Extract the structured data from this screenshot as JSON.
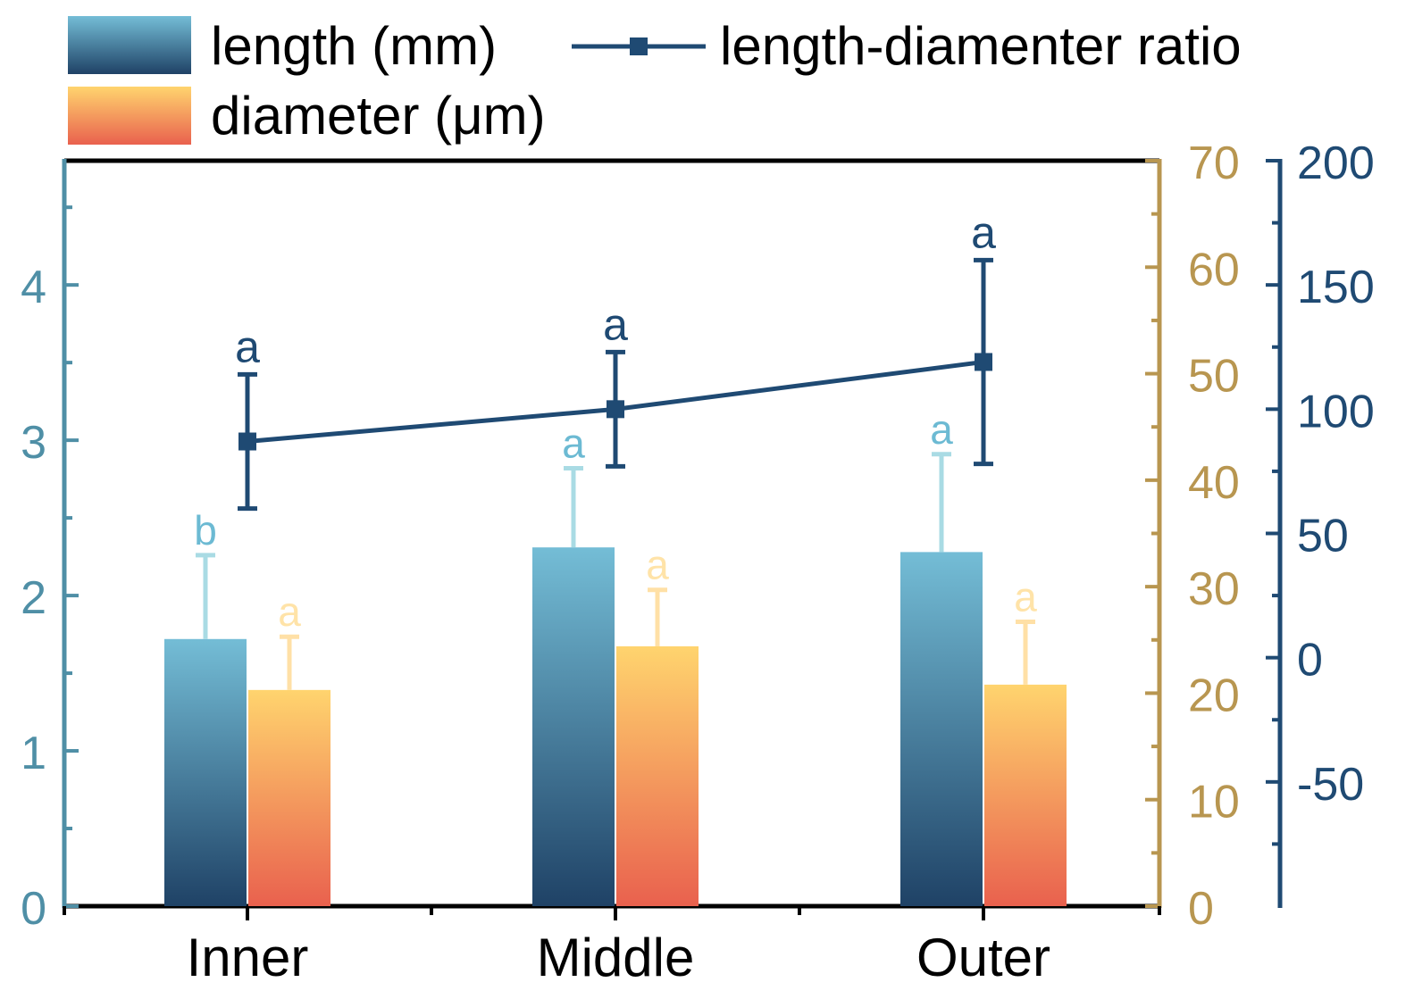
{
  "colors": {
    "length_top": "#74bdd6",
    "length_bottom": "#1f4266",
    "diameter_top": "#ffd46e",
    "diameter_bottom": "#e9614e",
    "ratio_line": "#1f4a73",
    "left_axis": "#4f8fa6",
    "mid_axis": "#b89650",
    "right_axis": "#1f4a73",
    "length_err": "#a9dbe4",
    "diameter_err": "#ffe0a6",
    "label_length": "#6cbad3",
    "label_diameter": "#ffe3a8",
    "label_ratio": "#1f4a73"
  },
  "legend": {
    "length": "length (mm)",
    "diameter": "diameter (μm)",
    "ratio": "length-diamenter ratio"
  },
  "chart_data": {
    "type": "bar",
    "categories": [
      "Inner",
      "Middle",
      "Outer"
    ],
    "series": [
      {
        "name": "length (mm)",
        "axis": "left",
        "values": [
          1.72,
          2.31,
          2.28
        ],
        "errors": [
          0.54,
          0.51,
          0.63
        ],
        "letters": [
          "b",
          "a",
          "a"
        ]
      },
      {
        "name": "diameter (μm)",
        "axis": "mid",
        "values": [
          20.3,
          24.4,
          20.8
        ],
        "errors": [
          5.0,
          5.3,
          5.9
        ],
        "letters": [
          "a",
          "a",
          "a"
        ]
      },
      {
        "name": "length-diamenter ratio",
        "type": "line",
        "axis": "right",
        "values": [
          87,
          100,
          119
        ],
        "errors": [
          27,
          23,
          41
        ],
        "letters": [
          "a",
          "a",
          "a"
        ]
      }
    ],
    "axes": {
      "left": {
        "ylim": [
          0,
          4.8
        ],
        "ticks": [
          0,
          1,
          2,
          3,
          4
        ],
        "tick_labels": [
          "0",
          "1",
          "2",
          "3",
          "4"
        ]
      },
      "mid": {
        "ylim": [
          0,
          70
        ],
        "ticks": [
          0,
          10,
          20,
          30,
          40,
          50,
          60,
          70
        ],
        "tick_labels": [
          "0",
          "10",
          "20",
          "30",
          "40",
          "50",
          "60",
          "70"
        ]
      },
      "right": {
        "ylim": [
          -100,
          200
        ],
        "ticks": [
          -50,
          0,
          50,
          100,
          150,
          200
        ],
        "tick_labels": [
          "-50",
          "0",
          "50",
          "100",
          "150",
          "200"
        ]
      }
    },
    "xlabel": "",
    "ylabel": "",
    "legend_position": "top"
  }
}
